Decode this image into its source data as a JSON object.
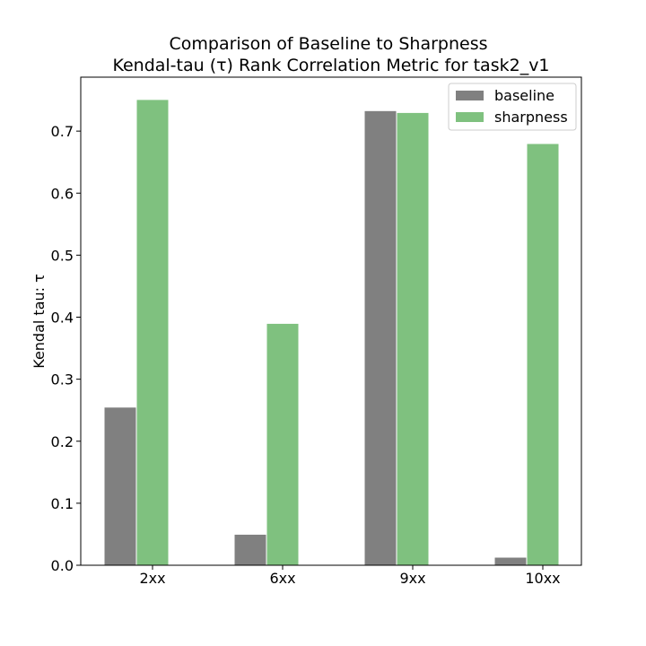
{
  "chart_data": {
    "type": "bar",
    "title_line1": "Comparison of Baseline to Sharpness",
    "title_line2": "Kendal-tau (τ) Rank Correlation Metric for task2_v1",
    "xlabel": "",
    "ylabel": "Kendal tau: τ",
    "categories": [
      "2xx",
      "6xx",
      "9xx",
      "10xx"
    ],
    "ylim": [
      0,
      0.787
    ],
    "yticks": [
      0.0,
      0.1,
      0.2,
      0.3,
      0.4,
      0.5,
      0.6,
      0.7
    ],
    "ytick_labels": [
      "0.0",
      "0.1",
      "0.2",
      "0.3",
      "0.4",
      "0.5",
      "0.6",
      "0.7"
    ],
    "legend_position": "top-right",
    "series": [
      {
        "name": "baseline",
        "color": "#808080",
        "values": [
          0.255,
          0.05,
          0.733,
          0.013
        ]
      },
      {
        "name": "sharpness",
        "color": "#7fc17f",
        "values": [
          0.751,
          0.39,
          0.73,
          0.68
        ]
      }
    ]
  }
}
